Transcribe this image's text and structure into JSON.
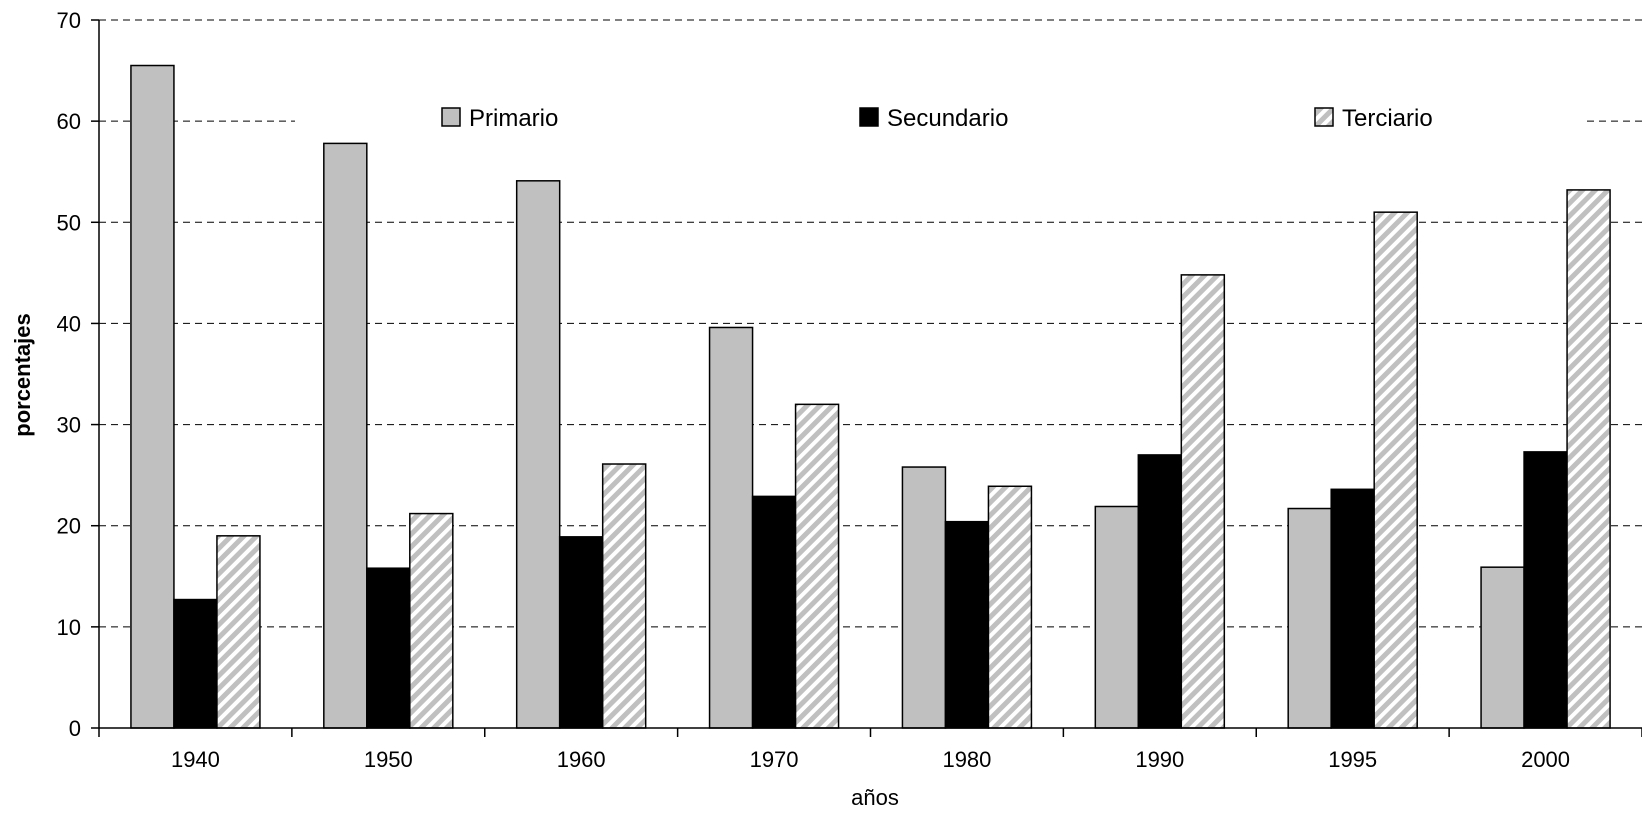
{
  "chart_data": {
    "type": "bar",
    "title": "",
    "xlabel": "años",
    "ylabel": "porcentajes",
    "ylim": [
      0,
      70
    ],
    "yticks": [
      0,
      10,
      20,
      30,
      40,
      50,
      60,
      70
    ],
    "grid": "horizontal dashed",
    "legend_position": "top",
    "categories": [
      "1940",
      "1950",
      "1960",
      "1970",
      "1980",
      "1990",
      "1995",
      "2000"
    ],
    "series": [
      {
        "name": "Primario",
        "values": [
          65.5,
          57.8,
          54.1,
          39.6,
          25.8,
          21.9,
          21.7,
          15.9
        ],
        "color": "#c0c0c0",
        "pattern": "solid"
      },
      {
        "name": "Secundario",
        "values": [
          12.7,
          15.8,
          18.9,
          22.9,
          20.4,
          27.0,
          23.6,
          27.3
        ],
        "color": "#000000",
        "pattern": "solid"
      },
      {
        "name": "Terciario",
        "values": [
          19.0,
          21.2,
          26.1,
          32.0,
          23.9,
          44.8,
          51.0,
          53.2
        ],
        "color": "#c0c0c0",
        "pattern": "diagonal-hatch"
      }
    ]
  }
}
